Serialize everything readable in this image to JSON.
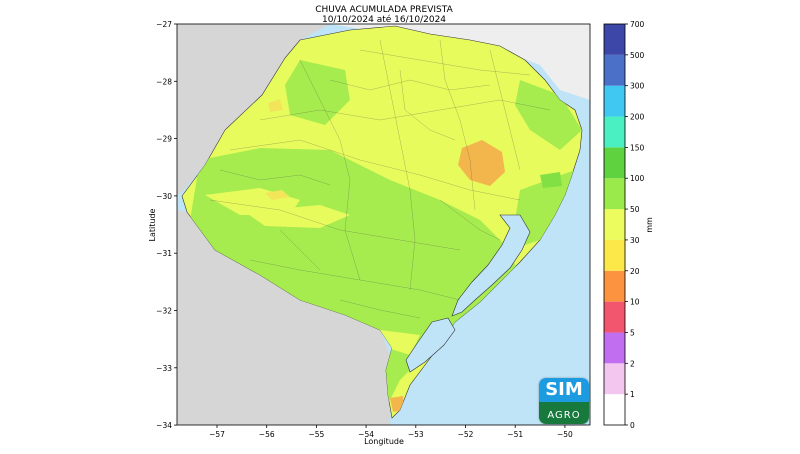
{
  "title": "CHUVA ACUMULADA PREVISTA",
  "subtitle": "10/10/2024 até 16/10/2024",
  "xlabel": "Longitude",
  "ylabel": "Latitude",
  "xticks": [
    "−57",
    "−56",
    "−55",
    "−54",
    "−53",
    "−52",
    "−51",
    "−50"
  ],
  "yticks": [
    "−27",
    "−28",
    "−29",
    "−30",
    "−31",
    "−32",
    "−33",
    "−34"
  ],
  "colorbar": {
    "unit": "mm",
    "levels": [
      "0",
      "1",
      "2",
      "5",
      "10",
      "20",
      "30",
      "50",
      "100",
      "150",
      "200",
      "300",
      "500",
      "700"
    ],
    "colors": [
      "#ffffff",
      "#f2c6ee",
      "#c26ef0",
      "#f2556e",
      "#fb9341",
      "#fde84a",
      "#ecfb5e",
      "#99ea4a",
      "#5fd33f",
      "#4af0c2",
      "#41c8f2",
      "#4a70c8",
      "#3d47a8"
    ]
  },
  "map_colors": {
    "ocean": "#bfe3f7",
    "neighbor": "#d6d6d6",
    "light_yellow": "#e8fb5c",
    "light_green": "#a6ec4f",
    "green": "#82e045",
    "yellow": "#f2e55a",
    "orange": "#f3b64c"
  },
  "logo": {
    "line1": "SIM",
    "line2": "AGRO"
  }
}
